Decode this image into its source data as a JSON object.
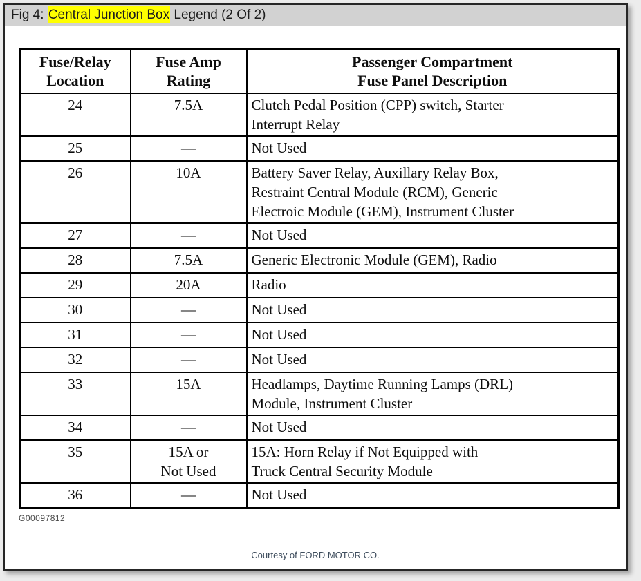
{
  "figure": {
    "title_prefix": "Fig 4: ",
    "title_highlight": "Central Junction Box",
    "title_suffix": " Legend (2 Of 2)",
    "highlight_color": "#ffff00",
    "titlebar_bg": "#d2d2d2",
    "footnote": "G00097812",
    "courtesy": "Courtesy of FORD MOTOR CO."
  },
  "table": {
    "headers": [
      "Fuse/Relay\nLocation",
      "Fuse Amp\nRating",
      "Passenger Compartment\nFuse Panel Description"
    ],
    "rows": [
      {
        "location": "24",
        "rating": "7.5A",
        "description": "Clutch Pedal Position (CPP) switch, Starter\nInterrupt Relay"
      },
      {
        "location": "25",
        "rating": "—",
        "description": "Not Used"
      },
      {
        "location": "26",
        "rating": "10A",
        "description": "Battery Saver Relay, Auxillary Relay Box,\nRestraint Central Module (RCM), Generic\nElectroic Module (GEM), Instrument Cluster"
      },
      {
        "location": "27",
        "rating": "—",
        "description": "Not Used"
      },
      {
        "location": "28",
        "rating": "7.5A",
        "description": "Generic Electronic Module (GEM), Radio"
      },
      {
        "location": "29",
        "rating": "20A",
        "description": "Radio"
      },
      {
        "location": "30",
        "rating": "—",
        "description": "Not Used"
      },
      {
        "location": "31",
        "rating": "—",
        "description": "Not Used"
      },
      {
        "location": "32",
        "rating": "—",
        "description": "Not Used"
      },
      {
        "location": "33",
        "rating": "15A",
        "description": "Headlamps, Daytime Running Lamps (DRL)\nModule, Instrument Cluster"
      },
      {
        "location": "34",
        "rating": "—",
        "description": "Not Used"
      },
      {
        "location": "35",
        "rating": "15A or\nNot Used",
        "description": "15A: Horn Relay if Not Equipped with\nTruck Central Security Module"
      },
      {
        "location": "36",
        "rating": "—",
        "description": "Not Used"
      }
    ]
  }
}
